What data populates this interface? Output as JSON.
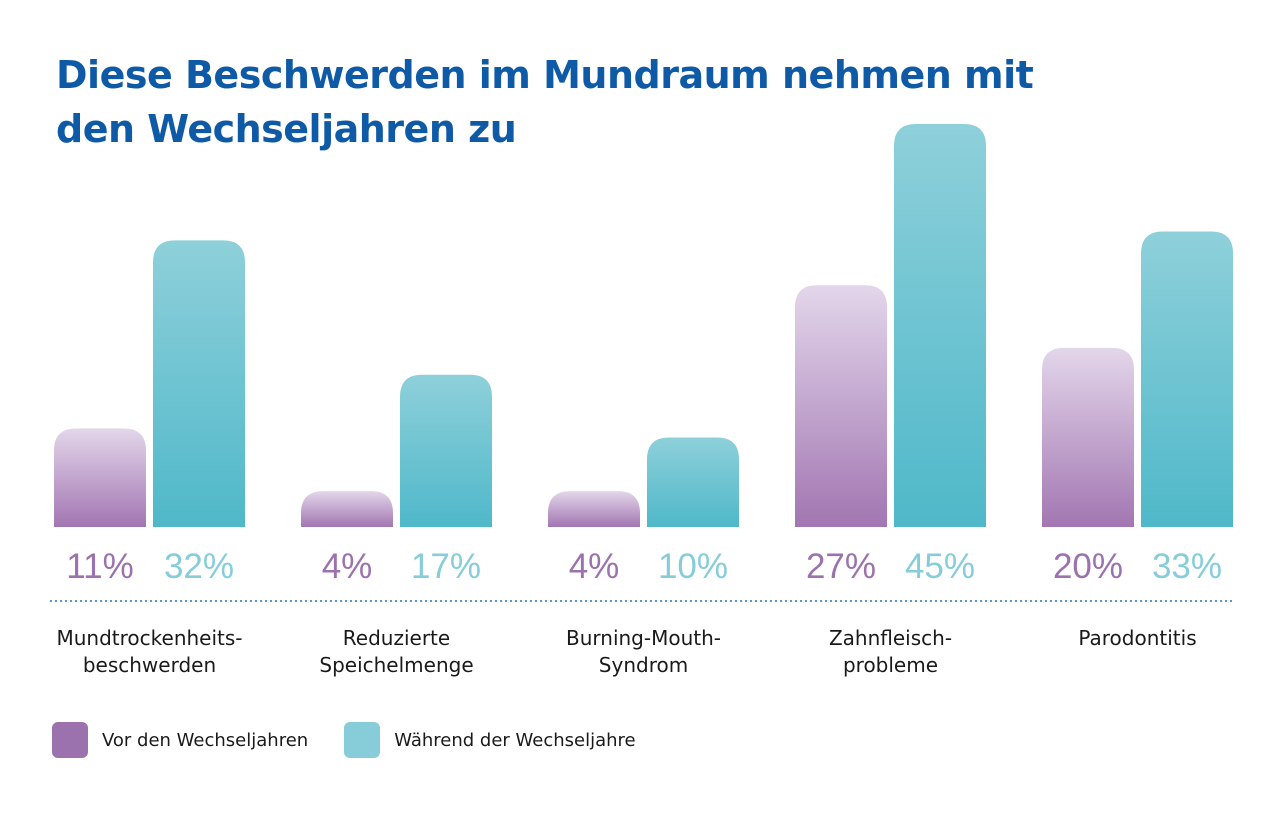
{
  "title_lines": [
    "Diese Beschwerden im Mundraum nehmen mit",
    "den Wechseljahren zu"
  ],
  "colors": {
    "title": "#0f5aa6",
    "before_top": "#e3d6ea",
    "before_bottom": "#a276b2",
    "during_top": "#8ed0da",
    "during_bottom": "#4fb8c9",
    "before_label": "#9b72ad",
    "during_label": "#86cdd9",
    "divider": "#2a72b0"
  },
  "legend": [
    {
      "label": "Vor den Wechseljahren",
      "color": "#9b72ad"
    },
    {
      "label": "Während der Wechseljahre",
      "color": "#86cdd9"
    }
  ],
  "chart_data": {
    "type": "bar",
    "title": "Diese Beschwerden im Mundraum nehmen mit den Wechseljahren zu",
    "categories": [
      [
        "Mundtrockenheits-",
        "beschwerden"
      ],
      [
        "Reduzierte",
        "Speichelmenge"
      ],
      [
        "Burning-Mouth-",
        "Syndrom"
      ],
      [
        "Zahnfleisch-",
        "probleme"
      ],
      [
        "Parodontitis"
      ]
    ],
    "series": [
      {
        "name": "Vor den Wechseljahren",
        "values": [
          11,
          4,
          4,
          27,
          20
        ],
        "labels": [
          "11%",
          "4%",
          "4%",
          "27%",
          "20%"
        ]
      },
      {
        "name": "Während der Wechseljahre",
        "values": [
          32,
          17,
          10,
          45,
          33
        ],
        "labels": [
          "32%",
          "17%",
          "10%",
          "45%",
          "33%"
        ]
      }
    ],
    "ylim": [
      0,
      45
    ],
    "grid": false,
    "legend_position": "bottom-left"
  }
}
